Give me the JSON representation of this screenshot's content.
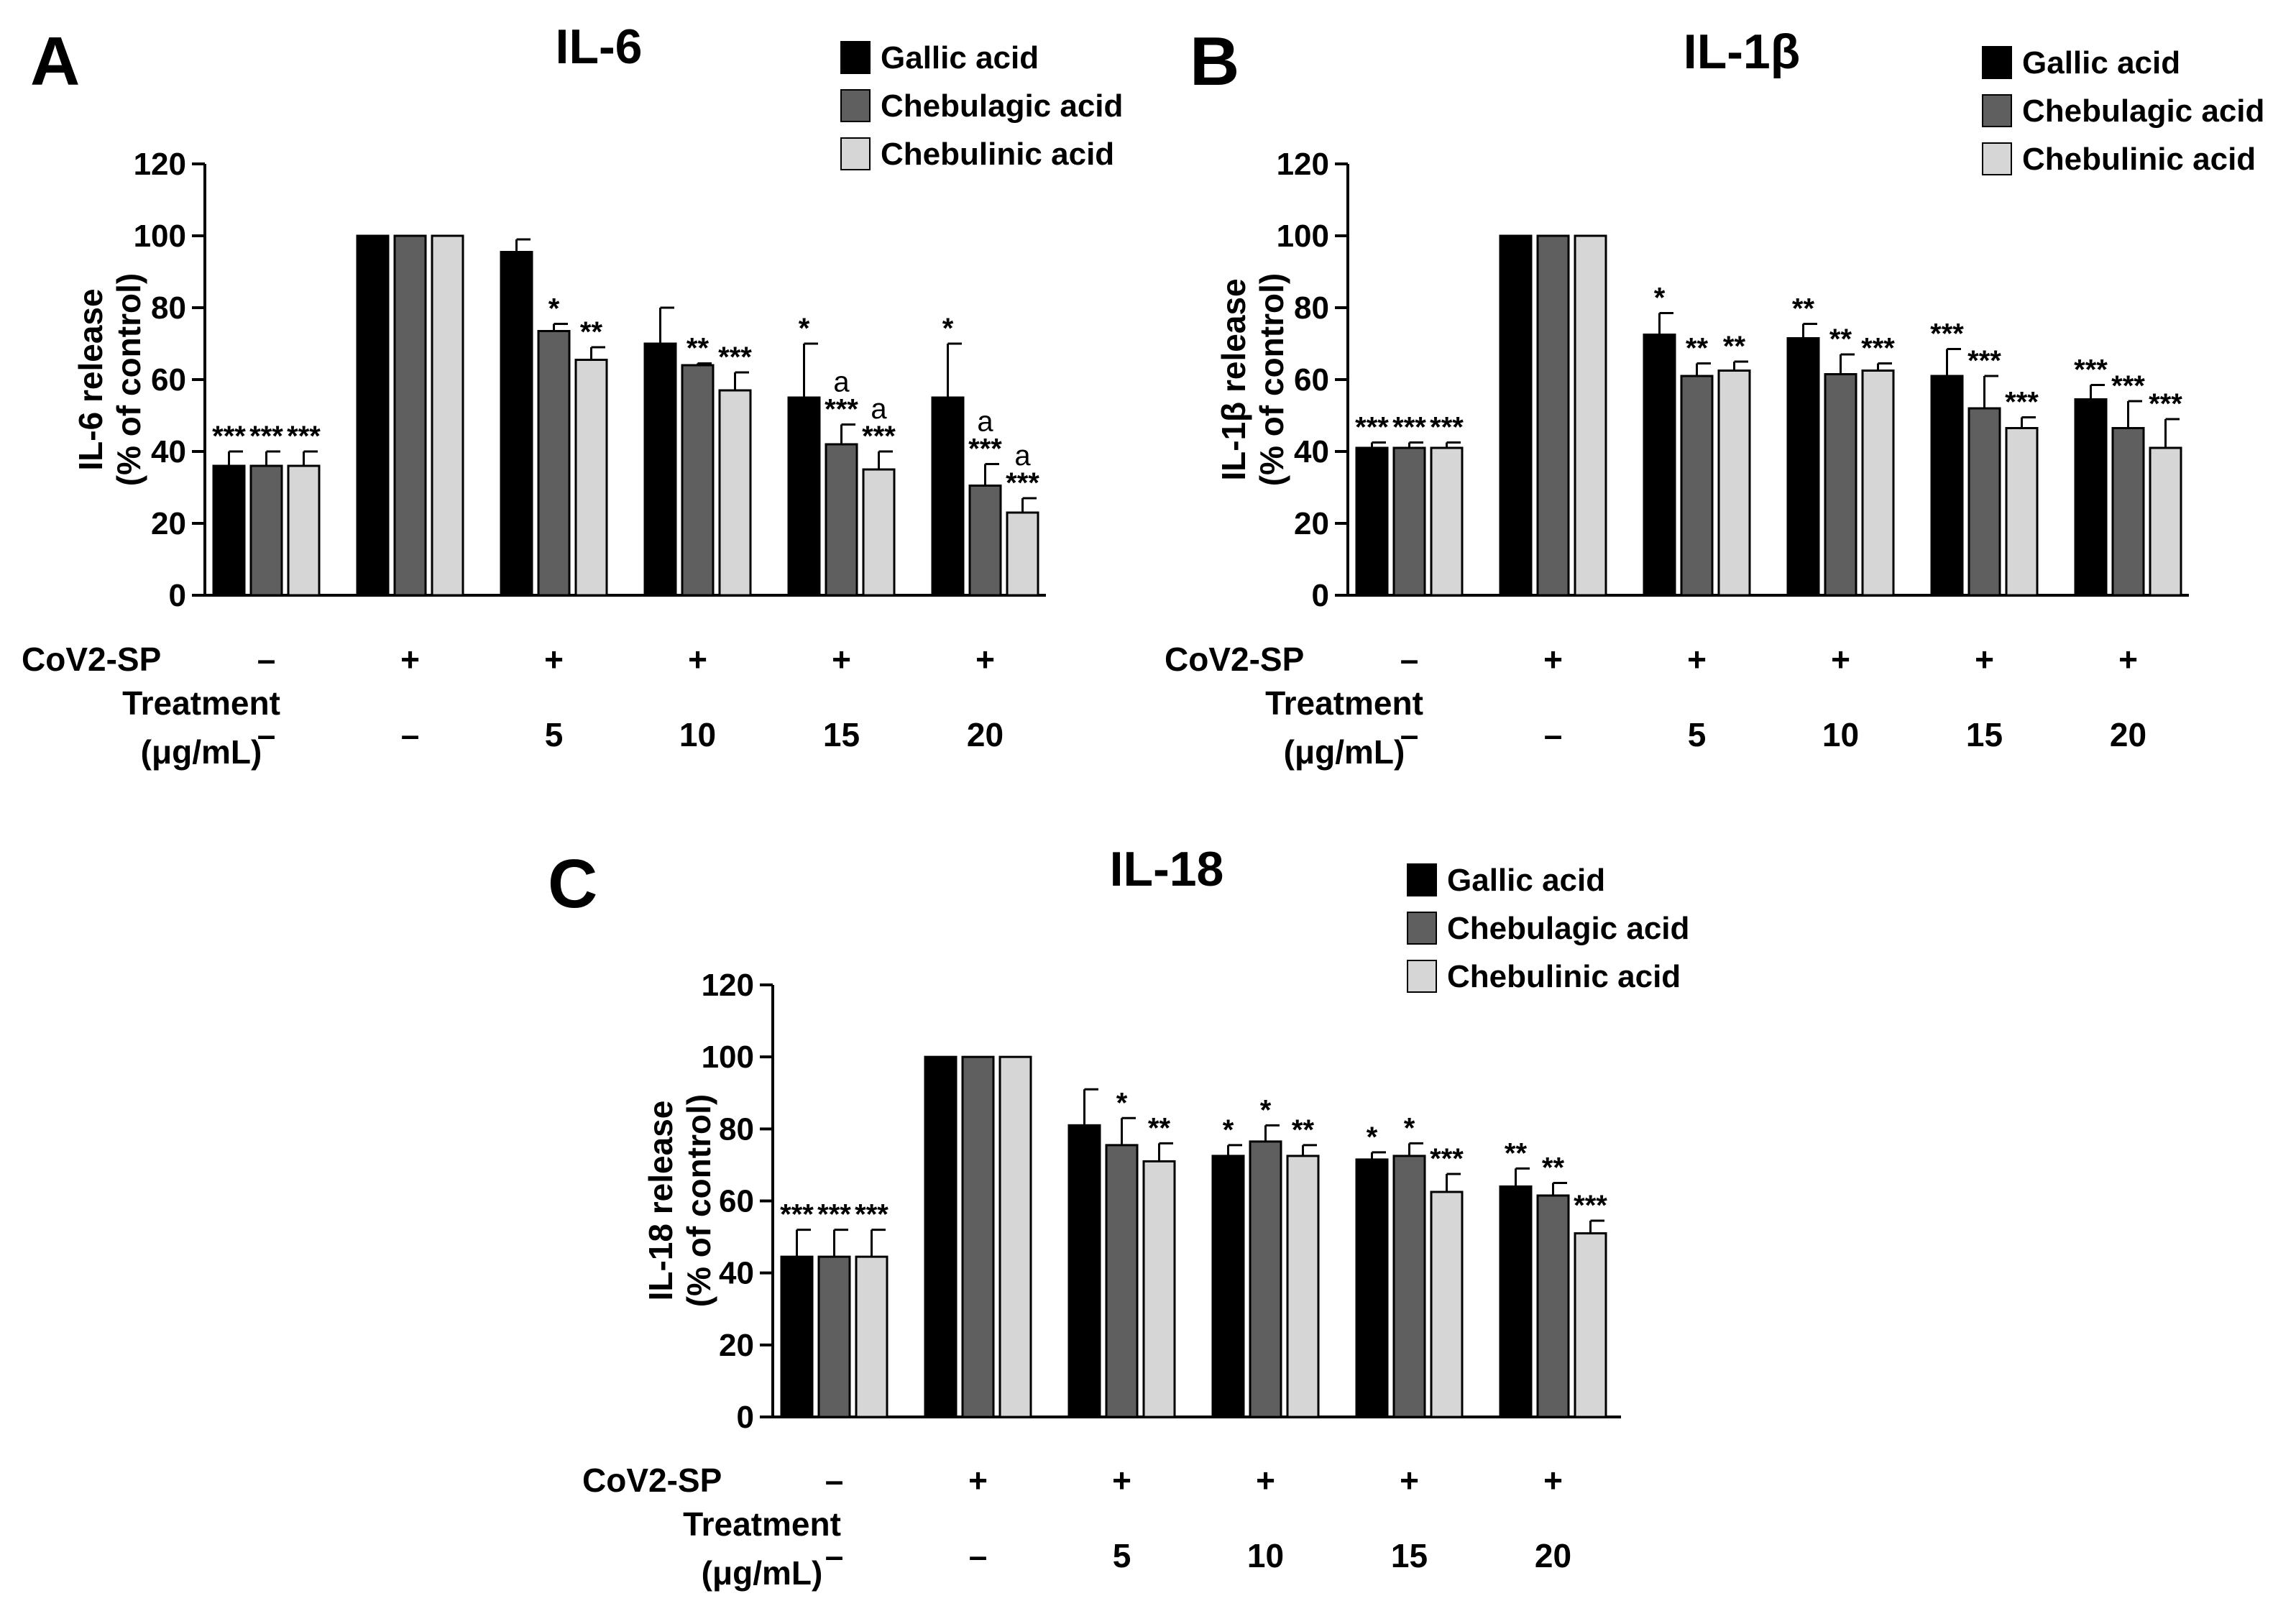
{
  "colors": {
    "gallic": "#000000",
    "chebulagic": "#5f5f5f",
    "chebulinic": "#d6d6d6",
    "axis": "#000000"
  },
  "legend": [
    "Gallic acid",
    "Chebulagic acid",
    "Chebulinic acid"
  ],
  "row_labels": {
    "cov2": "CoV2-SP",
    "treatment_line1": "Treatment",
    "treatment_line2": "(μg/mL)"
  },
  "groups": [
    {
      "cov2": "–",
      "treatment": "–"
    },
    {
      "cov2": "+",
      "treatment": "–"
    },
    {
      "cov2": "+",
      "treatment": "5"
    },
    {
      "cov2": "+",
      "treatment": "10"
    },
    {
      "cov2": "+",
      "treatment": "15"
    },
    {
      "cov2": "+",
      "treatment": "20"
    }
  ],
  "chart_data": [
    {
      "type": "bar",
      "panel": "A",
      "title": "IL-6",
      "ylabel_line1": "IL-6 release",
      "ylabel_line2": "(% of control)",
      "ylim": [
        0,
        120
      ],
      "yticks": [
        0,
        20,
        40,
        60,
        80,
        100,
        120
      ],
      "series": [
        {
          "name": "Gallic acid",
          "values": [
            36,
            100,
            95.5,
            70,
            55,
            55
          ],
          "errors": [
            4,
            0,
            3.5,
            10,
            15,
            15
          ],
          "annotations": [
            "***",
            "",
            "",
            "",
            "*",
            "*"
          ]
        },
        {
          "name": "Chebulagic acid",
          "values": [
            36,
            100,
            73.5,
            64,
            42,
            30.5
          ],
          "errors": [
            4,
            0,
            2,
            0.5,
            5.5,
            6
          ],
          "annotations": [
            "***",
            "",
            "*",
            "**",
            "a|***",
            "a|***"
          ]
        },
        {
          "name": "Chebulinic acid",
          "values": [
            36,
            100,
            65.5,
            57,
            35,
            23
          ],
          "errors": [
            4,
            0,
            3.5,
            5,
            5,
            4
          ],
          "annotations": [
            "***",
            "",
            "**",
            "***",
            "a|***",
            "a|***"
          ]
        }
      ]
    },
    {
      "type": "bar",
      "panel": "B",
      "title": "IL-1β",
      "ylabel_line1": "IL-1β release",
      "ylabel_line2": "(% of control)",
      "ylim": [
        0,
        120
      ],
      "yticks": [
        0,
        20,
        40,
        60,
        80,
        100,
        120
      ],
      "series": [
        {
          "name": "Gallic acid",
          "values": [
            41,
            100,
            72.5,
            71.5,
            61,
            54.5
          ],
          "errors": [
            1.5,
            0,
            6,
            4,
            7.5,
            4
          ],
          "annotations": [
            "***",
            "",
            "*",
            "**",
            "***",
            "***"
          ]
        },
        {
          "name": "Chebulagic acid",
          "values": [
            41,
            100,
            61,
            61.5,
            52,
            46.5
          ],
          "errors": [
            1.5,
            0,
            3.5,
            5.5,
            9,
            7.5
          ],
          "annotations": [
            "***",
            "",
            "**",
            "**",
            "***",
            "***"
          ]
        },
        {
          "name": "Chebulinic acid",
          "values": [
            41,
            100,
            62.5,
            62.5,
            46.5,
            41
          ],
          "errors": [
            1.5,
            0,
            2.5,
            2,
            3,
            8
          ],
          "annotations": [
            "***",
            "",
            "**",
            "***",
            "***",
            "***"
          ]
        }
      ]
    },
    {
      "type": "bar",
      "panel": "C",
      "title": "IL-18",
      "ylabel_line1": "IL-18 release",
      "ylabel_line2": "(% of control)",
      "ylim": [
        0,
        120
      ],
      "yticks": [
        0,
        20,
        40,
        60,
        80,
        100,
        120
      ],
      "series": [
        {
          "name": "Gallic acid",
          "values": [
            44.5,
            100,
            81,
            72.5,
            71.5,
            64
          ],
          "errors": [
            7.5,
            0,
            10,
            3,
            2,
            5
          ],
          "annotations": [
            "***",
            "",
            "",
            "*",
            "*",
            "**"
          ]
        },
        {
          "name": "Chebulagic acid",
          "values": [
            44.5,
            100,
            75.5,
            76.5,
            72.5,
            61.5
          ],
          "errors": [
            7.5,
            0,
            7.5,
            4.5,
            3.5,
            3.5
          ],
          "annotations": [
            "***",
            "",
            "*",
            "*",
            "*",
            "**"
          ]
        },
        {
          "name": "Chebulinic acid",
          "values": [
            44.5,
            100,
            71,
            72.5,
            62.5,
            51
          ],
          "errors": [
            7.5,
            0,
            5,
            3,
            5,
            3.5
          ],
          "annotations": [
            "***",
            "",
            "**",
            "**",
            "***",
            "***"
          ]
        }
      ]
    }
  ]
}
